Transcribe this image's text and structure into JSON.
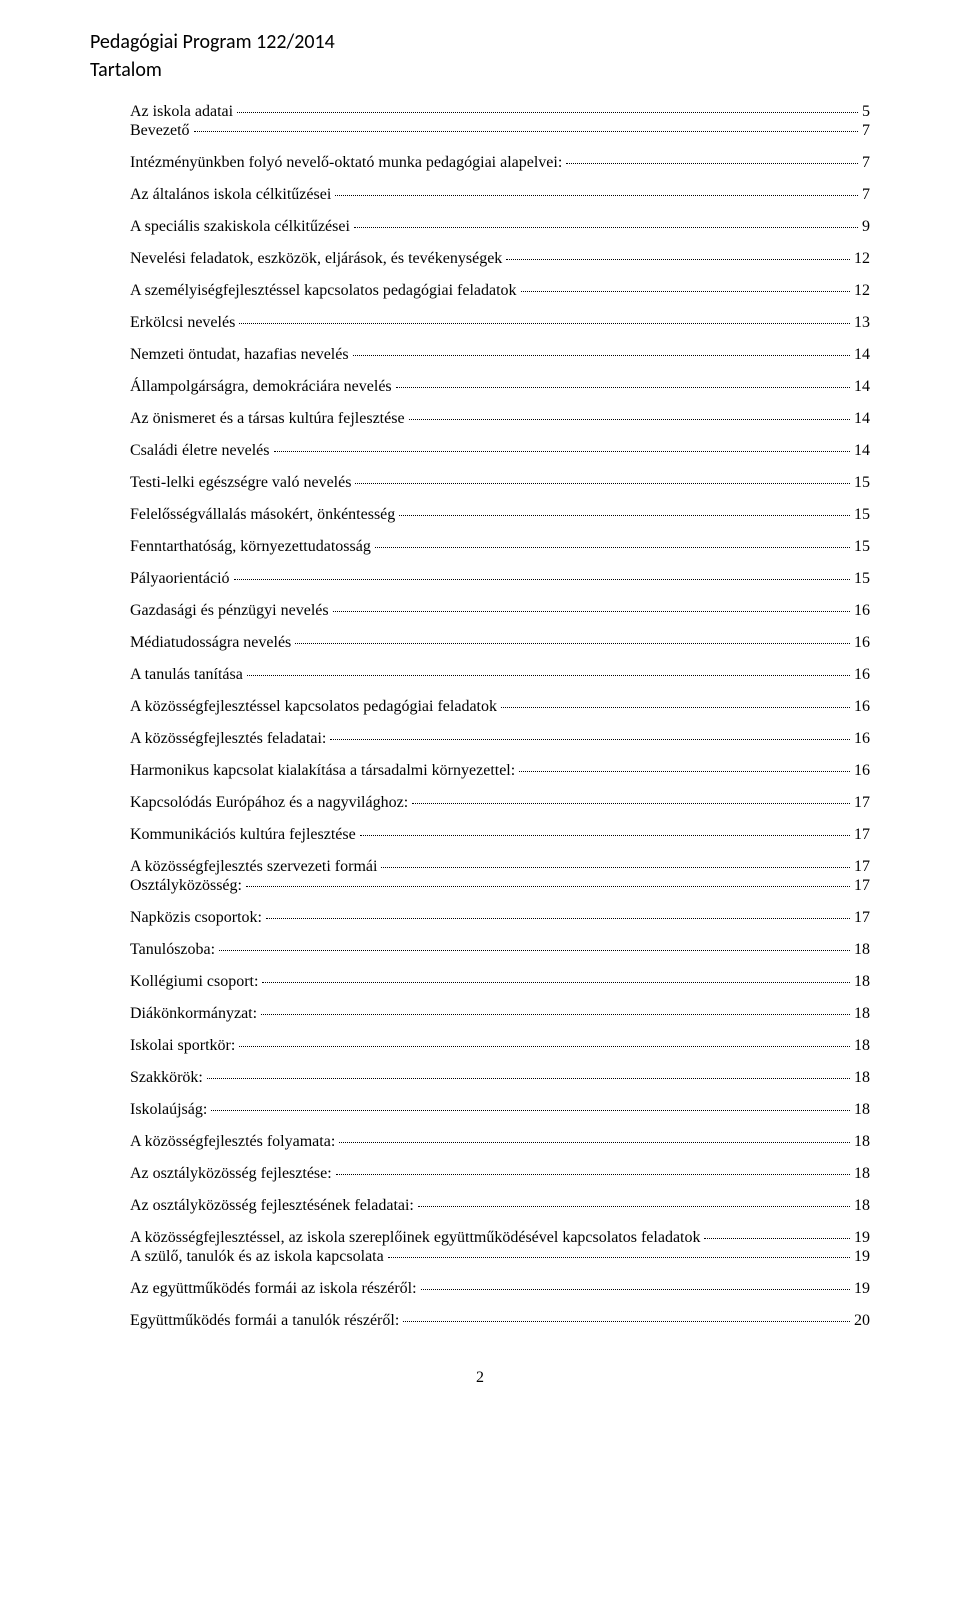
{
  "header": "Pedagógiai Program 122/2014",
  "subheader": "Tartalom",
  "page_number": "2",
  "entries": [
    {
      "label": "Az iskola adatai",
      "page": "5",
      "indent": 40,
      "pad": 1,
      "tight": true
    },
    {
      "label": "Bevezető",
      "page": "7",
      "indent": 40,
      "pad": 1
    },
    {
      "label": "Intézményünkben folyó nevelő-oktató munka pedagógiai alapelvei:",
      "page": "7",
      "indent": 40,
      "pad": 1
    },
    {
      "label": "Az általános iskola célkitűzései",
      "page": "7",
      "indent": 40,
      "pad": 1
    },
    {
      "label": "A speciális szakiskola célkitűzései",
      "page": "9",
      "indent": 40,
      "pad": 1
    },
    {
      "label": "Nevelési feladatok, eszközök, eljárások, és tevékenységek",
      "page": "12",
      "indent": 40,
      "pad": 0
    },
    {
      "label": "A személyiségfejlesztéssel kapcsolatos pedagógiai feladatok",
      "page": "12",
      "indent": 40,
      "pad": 0
    },
    {
      "label": "Erkölcsi nevelés",
      "page": "13",
      "indent": 40,
      "pad": 0
    },
    {
      "label": "Nemzeti öntudat, hazafias nevelés",
      "page": "14",
      "indent": 40,
      "pad": 0
    },
    {
      "label": "Állampolgárságra, demokráciára nevelés",
      "page": "14",
      "indent": 40,
      "pad": 0
    },
    {
      "label": "Az önismeret és a társas kultúra fejlesztése",
      "page": "14",
      "indent": 40,
      "pad": 0
    },
    {
      "label": "Családi életre nevelés",
      "page": "14",
      "indent": 40,
      "pad": 0
    },
    {
      "label": "Testi-lelki egészségre való nevelés",
      "page": "15",
      "indent": 40,
      "pad": 0
    },
    {
      "label": "Felelősségvállalás másokért, önkéntesség",
      "page": "15",
      "indent": 40,
      "pad": 0
    },
    {
      "label": "Fenntarthatóság, környezettudatosság",
      "page": "15",
      "indent": 40,
      "pad": 0
    },
    {
      "label": "Pályaorientáció",
      "page": "15",
      "indent": 40,
      "pad": 0
    },
    {
      "label": "Gazdasági és pénzügyi nevelés",
      "page": "16",
      "indent": 40,
      "pad": 0
    },
    {
      "label": "Médiatudosságra nevelés",
      "page": "16",
      "indent": 40,
      "pad": 0
    },
    {
      "label": "A tanulás tanítása",
      "page": "16",
      "indent": 40,
      "pad": 0
    },
    {
      "label": "A közösségfejlesztéssel kapcsolatos pedagógiai feladatok",
      "page": "16",
      "indent": 40,
      "pad": 0
    },
    {
      "label": "A közösségfejlesztés feladatai:",
      "page": "16",
      "indent": 40,
      "pad": 0
    },
    {
      "label": "Harmonikus kapcsolat kialakítása a társadalmi környezettel:",
      "page": "16",
      "indent": 40,
      "pad": 0
    },
    {
      "label": "Kapcsolódás Európához és a nagyvilághoz:",
      "page": "17",
      "indent": 40,
      "pad": 0
    },
    {
      "label": "Kommunikációs kultúra fejlesztése",
      "page": "17",
      "indent": 40,
      "pad": 0
    },
    {
      "label": "A közösségfejlesztés szervezeti formái",
      "page": "17",
      "indent": 40,
      "pad": 1,
      "tight": true
    },
    {
      "label": "Osztályközösség:",
      "page": "17",
      "indent": 40,
      "pad": 0
    },
    {
      "label": "Napközis csoportok:",
      "page": "17",
      "indent": 40,
      "pad": 0
    },
    {
      "label": "Tanulószoba:",
      "page": "18",
      "indent": 40,
      "pad": 0
    },
    {
      "label": "Kollégiumi csoport:",
      "page": "18",
      "indent": 40,
      "pad": 0
    },
    {
      "label": "Diákönkormányzat:",
      "page": "18",
      "indent": 40,
      "pad": 0
    },
    {
      "label": "Iskolai sportkör:",
      "page": "18",
      "indent": 40,
      "pad": 0
    },
    {
      "label": "Szakkörök:",
      "page": "18",
      "indent": 40,
      "pad": 0
    },
    {
      "label": "Iskolaújság:",
      "page": "18",
      "indent": 40,
      "pad": 0
    },
    {
      "label": "A közösségfejlesztés folyamata:",
      "page": "18",
      "indent": 40,
      "pad": 0
    },
    {
      "label": "Az osztályközösség fejlesztése:",
      "page": "18",
      "indent": 40,
      "pad": 0
    },
    {
      "label": "Az osztályközösség fejlesztésének feladatai:",
      "page": "18",
      "indent": 40,
      "pad": 0
    },
    {
      "label": "A közösségfejlesztéssel, az iskola szereplőinek együttműködésével kapcsolatos feladatok",
      "page": "19",
      "indent": 40,
      "pad": 1,
      "tight": true
    },
    {
      "label": "A szülő, tanulók és az iskola kapcsolata",
      "page": "19",
      "indent": 40,
      "pad": 0
    },
    {
      "label": "Az együttműködés formái az iskola részéről:",
      "page": "19",
      "indent": 40,
      "pad": 0
    },
    {
      "label": "Együttműködés formái a tanulók részéről:",
      "page": "20",
      "indent": 40,
      "pad": 0
    }
  ]
}
